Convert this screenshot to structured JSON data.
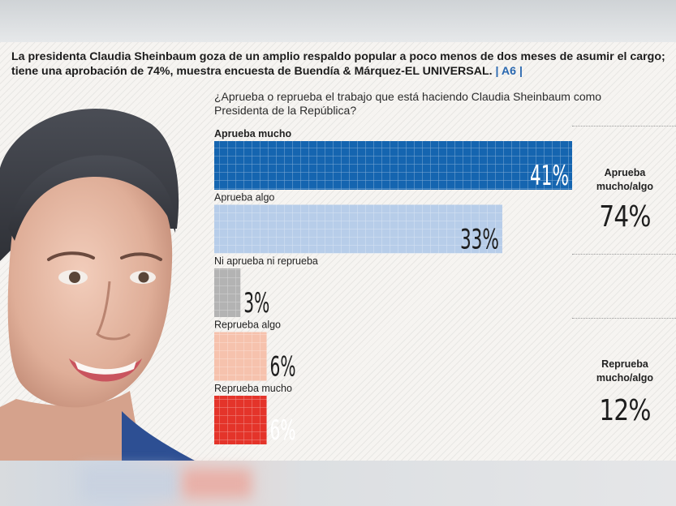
{
  "headline": {
    "text": "La presidenta Claudia Sheinbaum goza de un amplio respaldo popular a poco menos de dos meses de asumir el cargo; tiene una aprobación de 74%, muestra encuesta de Buendía & Márquez-EL UNIVERSAL.",
    "ref": " | A6 |"
  },
  "chart_data": {
    "type": "bar",
    "orientation": "horizontal",
    "title": "¿Aprueba o reprueba el trabajo que está haciendo Claudia Sheinbaum como Presidenta de la República?",
    "categories": [
      "Aprueba mucho",
      "Aprueba algo",
      "Ni aprueba ni reprueba",
      "Reprueba algo",
      "Reprueba mucho"
    ],
    "values": [
      41,
      33,
      3,
      6,
      6
    ],
    "value_labels": [
      "41%",
      "33%",
      "3%",
      "6%",
      "6%"
    ],
    "colors": [
      "#1565b0",
      "#b7cde9",
      "#b3b3b3",
      "#f6c2ad",
      "#e4342a"
    ],
    "xlim": [
      0,
      41
    ]
  },
  "summary": [
    {
      "label_lines": [
        "Aprueba",
        "mucho/algo"
      ],
      "value": "74%"
    },
    {
      "label_lines": [
        "Reprueba",
        "mucho/algo"
      ],
      "value": "12%"
    }
  ]
}
